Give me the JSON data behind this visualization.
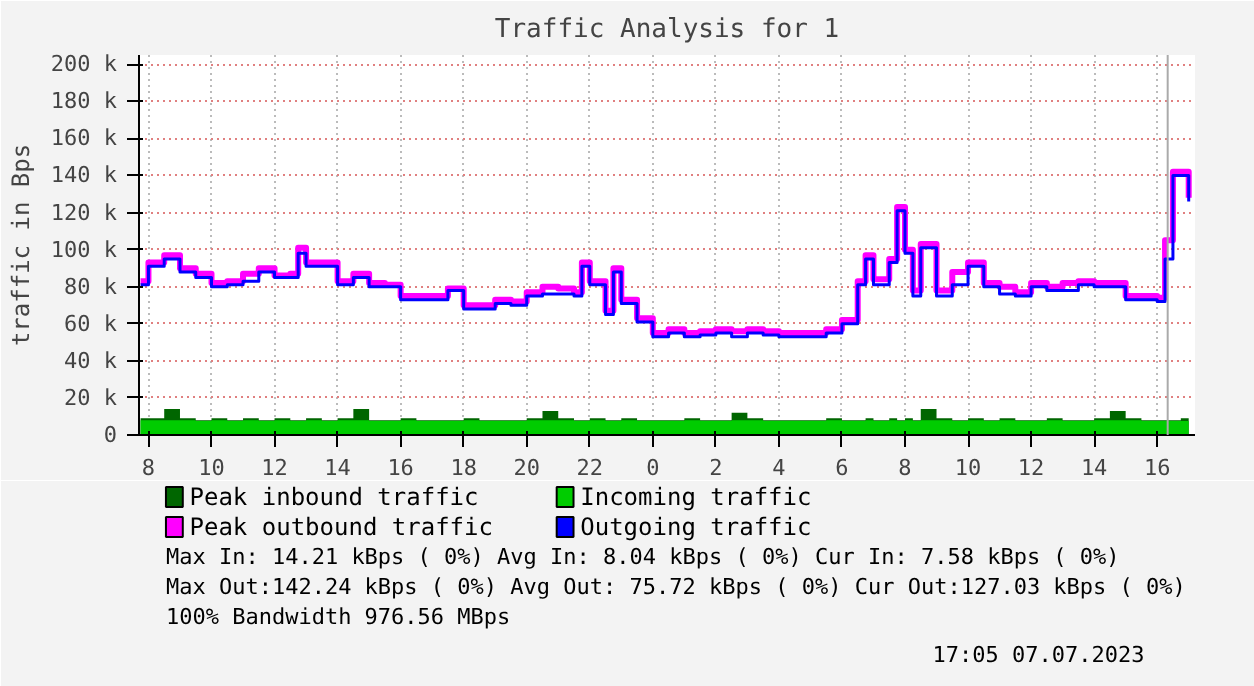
{
  "chart_data": {
    "type": "step",
    "title": "Traffic Analysis for 1",
    "ylabel": "traffic in Bps",
    "x": [
      "2023-07-06T07:45",
      "2023-07-06T08:00",
      "2023-07-06T08:30",
      "2023-07-06T09:00",
      "2023-07-06T09:30",
      "2023-07-06T10:00",
      "2023-07-06T10:30",
      "2023-07-06T11:00",
      "2023-07-06T11:30",
      "2023-07-06T12:00",
      "2023-07-06T12:30",
      "2023-07-06T12:45",
      "2023-07-06T13:00",
      "2023-07-06T13:30",
      "2023-07-06T14:00",
      "2023-07-06T14:30",
      "2023-07-06T15:00",
      "2023-07-06T15:30",
      "2023-07-06T16:00",
      "2023-07-06T16:30",
      "2023-07-06T17:00",
      "2023-07-06T17:30",
      "2023-07-06T18:00",
      "2023-07-06T18:30",
      "2023-07-06T19:00",
      "2023-07-06T19:30",
      "2023-07-06T20:00",
      "2023-07-06T20:30",
      "2023-07-06T21:00",
      "2023-07-06T21:30",
      "2023-07-06T21:45",
      "2023-07-06T22:00",
      "2023-07-06T22:30",
      "2023-07-06T22:45",
      "2023-07-06T23:00",
      "2023-07-06T23:30",
      "2023-07-07T00:00",
      "2023-07-07T00:30",
      "2023-07-07T01:00",
      "2023-07-07T01:30",
      "2023-07-07T02:00",
      "2023-07-07T02:30",
      "2023-07-07T03:00",
      "2023-07-07T03:30",
      "2023-07-07T04:00",
      "2023-07-07T04:30",
      "2023-07-07T05:00",
      "2023-07-07T05:30",
      "2023-07-07T06:00",
      "2023-07-07T06:30",
      "2023-07-07T06:45",
      "2023-07-07T07:00",
      "2023-07-07T07:30",
      "2023-07-07T07:45",
      "2023-07-07T08:00",
      "2023-07-07T08:15",
      "2023-07-07T08:30",
      "2023-07-07T09:00",
      "2023-07-07T09:30",
      "2023-07-07T10:00",
      "2023-07-07T10:30",
      "2023-07-07T11:00",
      "2023-07-07T11:30",
      "2023-07-07T12:00",
      "2023-07-07T12:30",
      "2023-07-07T13:00",
      "2023-07-07T13:30",
      "2023-07-07T14:00",
      "2023-07-07T14:30",
      "2023-07-07T15:00",
      "2023-07-07T15:30",
      "2023-07-07T16:00",
      "2023-07-07T16:15",
      "2023-07-07T16:30",
      "2023-07-07T16:45",
      "2023-07-07T17:00"
    ],
    "series": [
      {
        "name": "Peak inbound traffic",
        "type": "area",
        "color": "#006600",
        "values": [
          9000,
          9000,
          14000,
          9000,
          8000,
          9000,
          8000,
          9000,
          8000,
          9000,
          8000,
          8000,
          9000,
          8000,
          9000,
          14000,
          8000,
          8000,
          9000,
          8000,
          8000,
          8000,
          9000,
          8000,
          8000,
          8000,
          9000,
          13000,
          9000,
          8000,
          8000,
          9000,
          8000,
          8000,
          9000,
          8000,
          8000,
          8000,
          9000,
          8000,
          8000,
          12000,
          9000,
          8000,
          8000,
          8000,
          8000,
          9000,
          8000,
          8000,
          9000,
          8000,
          9000,
          8000,
          9000,
          8000,
          14000,
          9000,
          8000,
          9000,
          8000,
          9000,
          8000,
          8000,
          9000,
          8000,
          8000,
          9000,
          13000,
          9000,
          8000,
          8000,
          8000,
          8000,
          9000,
          9000
        ]
      },
      {
        "name": "Incoming traffic",
        "type": "area",
        "color": "#00cc00",
        "values": [
          8000,
          8000,
          8000,
          8000,
          7500,
          8000,
          7500,
          8000,
          7500,
          8000,
          7500,
          7500,
          8000,
          7500,
          8000,
          8000,
          7500,
          7500,
          8000,
          7500,
          7500,
          7500,
          8000,
          7500,
          7500,
          7500,
          8000,
          8000,
          8000,
          7500,
          7500,
          8000,
          7500,
          7500,
          8000,
          7500,
          7500,
          7500,
          8000,
          7500,
          7500,
          8000,
          8000,
          7500,
          7500,
          7500,
          7500,
          8000,
          7500,
          7500,
          8000,
          7500,
          8000,
          7500,
          8000,
          7500,
          8000,
          8000,
          7500,
          8000,
          7500,
          8000,
          7500,
          7500,
          8000,
          7500,
          7500,
          8000,
          8000,
          8000,
          7500,
          7500,
          7500,
          7500,
          7600,
          7600
        ]
      },
      {
        "name": "Peak outbound traffic",
        "color": "#ff00ff",
        "values": [
          83000,
          93000,
          97000,
          90000,
          87000,
          82000,
          83000,
          87000,
          90000,
          86000,
          87000,
          101000,
          93000,
          93000,
          83000,
          87000,
          82000,
          81000,
          75000,
          75000,
          75000,
          79000,
          70000,
          70000,
          73000,
          72000,
          77000,
          80000,
          79000,
          77000,
          93000,
          83000,
          67000,
          90000,
          73000,
          63000,
          55000,
          57000,
          55000,
          56000,
          57000,
          56000,
          57000,
          56000,
          55000,
          55000,
          55000,
          57000,
          62000,
          83000,
          97000,
          84000,
          95000,
          123000,
          100000,
          78000,
          103000,
          78000,
          88000,
          93000,
          82000,
          80000,
          77000,
          82000,
          80000,
          82000,
          83000,
          82000,
          82000,
          75000,
          75000,
          74000,
          105000,
          142000,
          142000,
          128000
        ]
      },
      {
        "name": "Outgoing traffic",
        "color": "#0000ff",
        "values": [
          81000,
          91000,
          95000,
          88000,
          85000,
          80000,
          81000,
          83000,
          88000,
          85000,
          85000,
          98000,
          91000,
          91000,
          81000,
          85000,
          80000,
          80000,
          73000,
          73000,
          73000,
          78000,
          68000,
          68000,
          71000,
          70000,
          75000,
          76000,
          76000,
          75000,
          91000,
          81000,
          65000,
          88000,
          71000,
          61000,
          53000,
          55000,
          53000,
          54000,
          55000,
          53000,
          55000,
          54000,
          53000,
          53000,
          53000,
          55000,
          60000,
          81000,
          95000,
          81000,
          93000,
          121000,
          98000,
          75000,
          101000,
          75000,
          81000,
          91000,
          80000,
          76000,
          75000,
          80000,
          78000,
          78000,
          81000,
          80000,
          80000,
          73000,
          73000,
          72000,
          95000,
          140000,
          140000,
          126000
        ]
      }
    ],
    "xlim": [
      "2023-07-06T07:42",
      "2023-07-07T17:12"
    ],
    "ylim": [
      0,
      205000
    ],
    "xticks": [
      {
        "value": "2023-07-06T08:00",
        "label": "8"
      },
      {
        "value": "2023-07-06T10:00",
        "label": "10"
      },
      {
        "value": "2023-07-06T12:00",
        "label": "12"
      },
      {
        "value": "2023-07-06T14:00",
        "label": "14"
      },
      {
        "value": "2023-07-06T16:00",
        "label": "16"
      },
      {
        "value": "2023-07-06T18:00",
        "label": "18"
      },
      {
        "value": "2023-07-06T20:00",
        "label": "20"
      },
      {
        "value": "2023-07-06T22:00",
        "label": "22"
      },
      {
        "value": "2023-07-07T00:00",
        "label": "0"
      },
      {
        "value": "2023-07-07T02:00",
        "label": "2"
      },
      {
        "value": "2023-07-07T04:00",
        "label": "4"
      },
      {
        "value": "2023-07-07T06:00",
        "label": "6"
      },
      {
        "value": "2023-07-07T08:00",
        "label": "8"
      },
      {
        "value": "2023-07-07T10:00",
        "label": "10"
      },
      {
        "value": "2023-07-07T12:00",
        "label": "12"
      },
      {
        "value": "2023-07-07T14:00",
        "label": "14"
      },
      {
        "value": "2023-07-07T16:00",
        "label": "16"
      }
    ],
    "yticks": [
      0,
      {
        "value": 20000,
        "label": "20 k"
      },
      {
        "value": 40000,
        "label": "40 k"
      },
      {
        "value": 60000,
        "label": "60 k"
      },
      {
        "value": 80000,
        "label": "80 k"
      },
      {
        "value": 100000,
        "label": "100 k"
      },
      {
        "value": 120000,
        "label": "120 k"
      },
      {
        "value": 140000,
        "label": "140 k"
      },
      {
        "value": 160000,
        "label": "160 k"
      },
      {
        "value": 180000,
        "label": "180 k"
      },
      {
        "value": 200000,
        "label": "200 k"
      }
    ],
    "ref_lines": [
      {
        "axis": "x",
        "value": "2023-07-07T16:20",
        "label": null,
        "color": "#aaaaaa"
      }
    ],
    "grid": true,
    "legend": "bottom",
    "line_style": "solid",
    "marker": "none",
    "annotations": [
      "Max In:  14.21 kBps ( 0%)  Avg In:   8.04 kBps ( 0%)  Cur In:   7.58 kBps ( 0%)",
      "Max Out:142.24 kBps ( 0%)  Avg Out: 75.72 kBps ( 0%)  Cur Out:127.03 kBps ( 0%)",
      "100% Bandwidth 976.56 MBps",
      "17:05 07.07.2023"
    ]
  }
}
